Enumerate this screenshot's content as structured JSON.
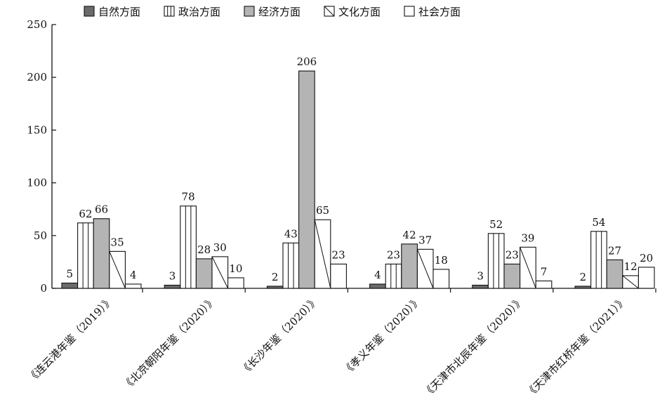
{
  "chart_data": {
    "type": "bar",
    "title": "",
    "xlabel": "",
    "ylabel": "",
    "ylim": [
      0,
      250
    ],
    "yticks": [
      0,
      50,
      100,
      150,
      200,
      250
    ],
    "grid": false,
    "legend_position": "top",
    "categories": [
      "《连云港年鉴（2019）》",
      "《北京朝阳年鉴（2020）》",
      "《长沙年鉴（2020）》",
      "《孝义年鉴（2020）》",
      "《天津市北辰年鉴（2020）》",
      "《天津市红桥年鉴（2021）》"
    ],
    "series": [
      {
        "name": "自然方面",
        "pattern": "solid-dark",
        "color": "#6b6b6b",
        "values": [
          5,
          3,
          2,
          4,
          3,
          2
        ]
      },
      {
        "name": "政治方面",
        "pattern": "vertical-lines",
        "color": "#ffffff",
        "values": [
          62,
          78,
          43,
          23,
          52,
          54
        ]
      },
      {
        "name": "经济方面",
        "pattern": "solid-light",
        "color": "#b4b4b4",
        "values": [
          66,
          28,
          206,
          42,
          23,
          27
        ]
      },
      {
        "name": "文化方面",
        "pattern": "diagonal",
        "color": "#ffffff",
        "values": [
          35,
          30,
          65,
          37,
          39,
          12
        ]
      },
      {
        "name": "社会方面",
        "pattern": "empty",
        "color": "#ffffff",
        "values": [
          4,
          10,
          23,
          18,
          7,
          20
        ]
      }
    ]
  }
}
